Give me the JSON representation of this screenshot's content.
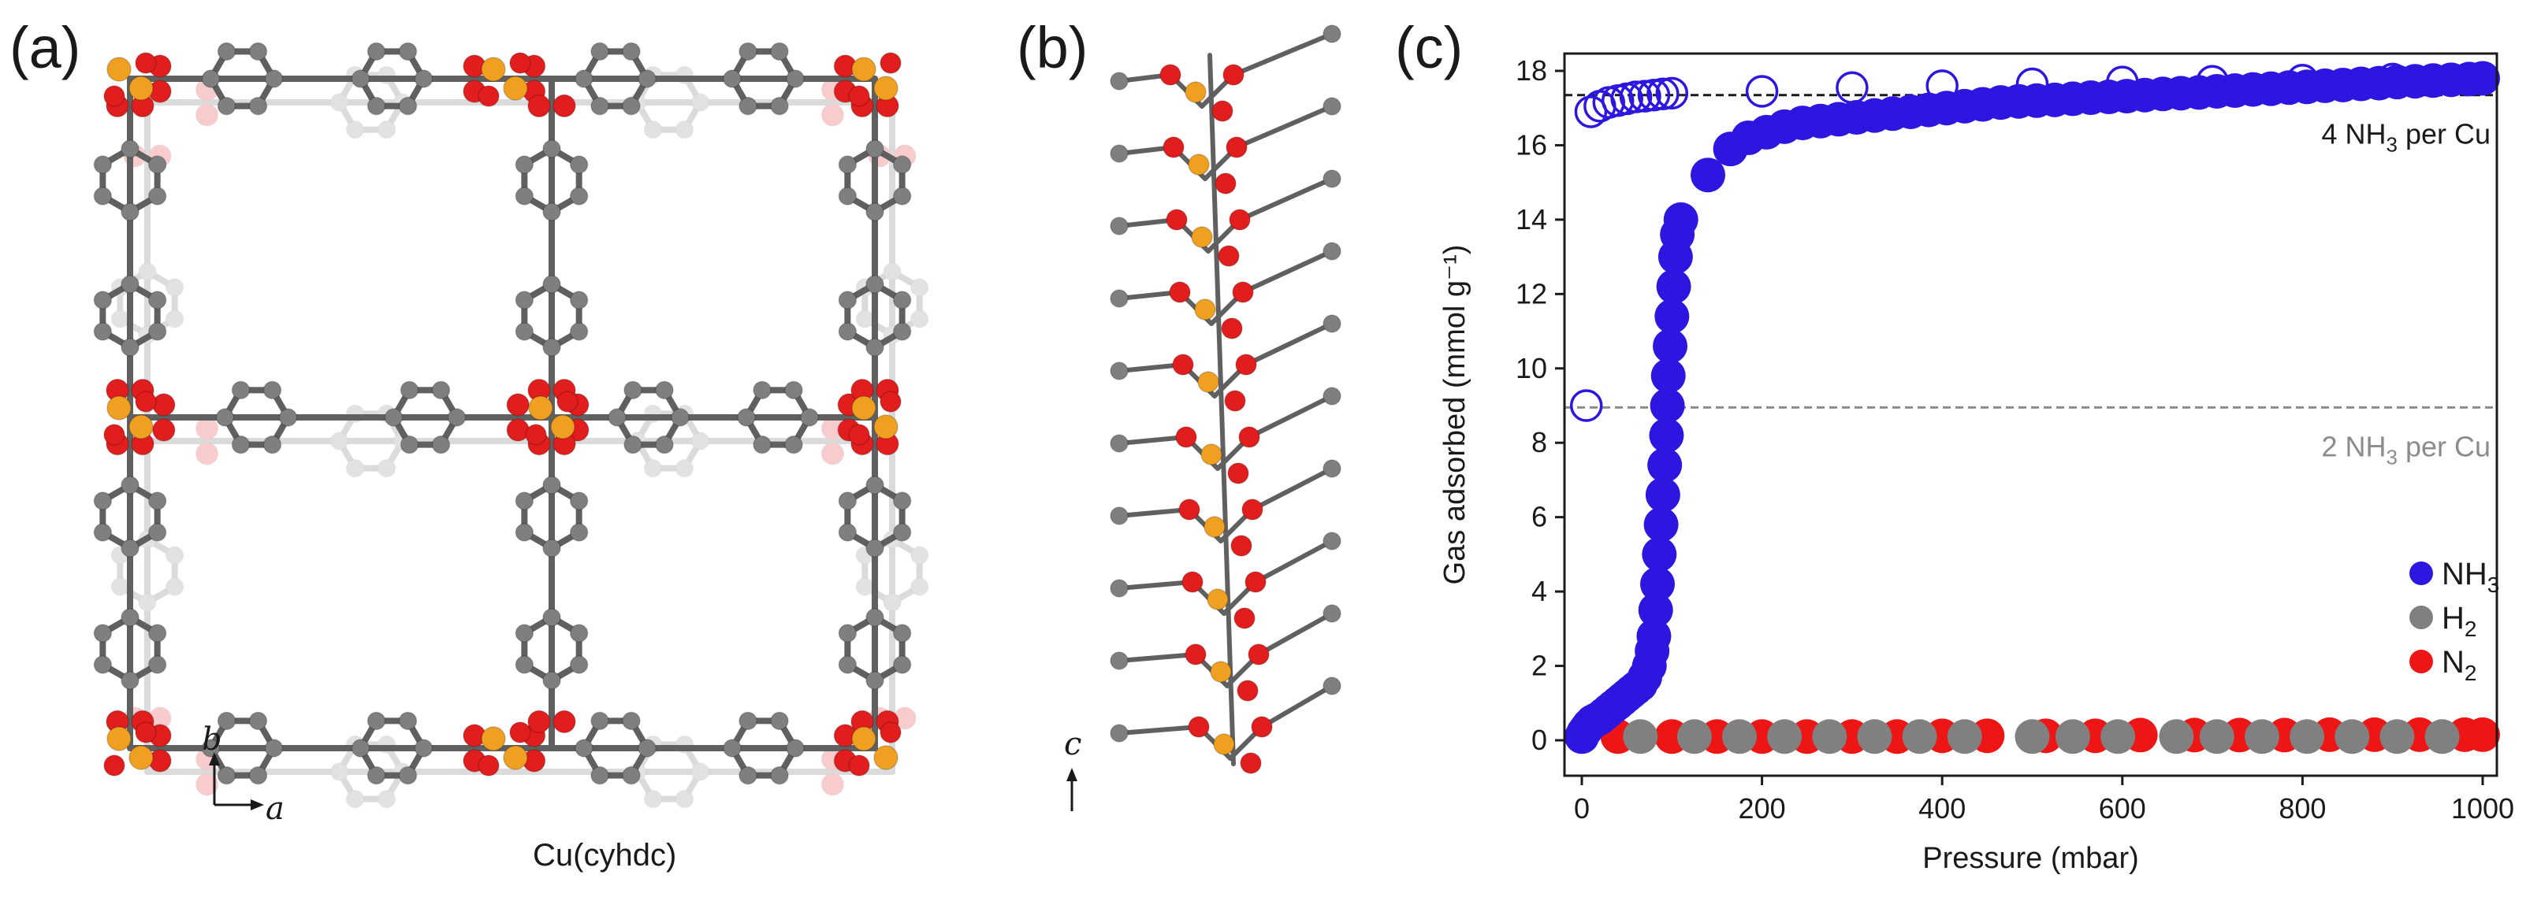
{
  "panels": {
    "a": {
      "letter": "(a)",
      "caption": "Cu(cyhdc)",
      "axis_b": "b",
      "axis_a": "a"
    },
    "b": {
      "letter": "(b)",
      "axis_c": "c"
    },
    "c": {
      "letter": "(c)"
    }
  },
  "colors": {
    "cu": "#f0a020",
    "oxygen": "#e21d1d",
    "carbon": "#7f7f7f",
    "bond": "#606060",
    "nh3": "#2d17e0",
    "h2": "#808080",
    "n2": "#ee1515"
  },
  "chart_data": {
    "type": "scatter",
    "xlabel": "Pressure (mbar)",
    "ylabel": "Gas adsorbed (mmol g⁻¹)",
    "xlim": [
      0,
      1000
    ],
    "ylim": [
      0,
      18
    ],
    "x_ticks": [
      0,
      200,
      400,
      600,
      800,
      1000
    ],
    "y_ticks": [
      0,
      2,
      4,
      6,
      8,
      10,
      12,
      14,
      16,
      18
    ],
    "reference_lines": [
      {
        "y": 17.35,
        "label_main": "4 NH",
        "label_sub": "3",
        "label_rest": " per Cu",
        "color": "#1a1a1a"
      },
      {
        "y": 8.95,
        "label_main": "2 NH",
        "label_sub": "3",
        "label_rest": " per Cu",
        "color": "#8c8c8c"
      }
    ],
    "legend": {
      "position": "bottom-right",
      "entries": [
        {
          "main": "NH",
          "sub": "3",
          "color": "#2d17e0"
        },
        {
          "main": "H",
          "sub": "2",
          "color": "#808080"
        },
        {
          "main": "N",
          "sub": "2",
          "color": "#ee1515"
        }
      ]
    },
    "series": [
      {
        "key": "NH3_adsorption",
        "marker": "filled",
        "color": "#2d17e0",
        "points": [
          [
            0,
            0.1
          ],
          [
            2,
            0.2
          ],
          [
            5,
            0.3
          ],
          [
            8,
            0.4
          ],
          [
            12,
            0.5
          ],
          [
            16,
            0.55
          ],
          [
            20,
            0.6
          ],
          [
            25,
            0.7
          ],
          [
            30,
            0.8
          ],
          [
            35,
            0.9
          ],
          [
            40,
            1.0
          ],
          [
            45,
            1.1
          ],
          [
            50,
            1.2
          ],
          [
            55,
            1.3
          ],
          [
            60,
            1.4
          ],
          [
            65,
            1.5
          ],
          [
            70,
            1.7
          ],
          [
            75,
            2.0
          ],
          [
            78,
            2.4
          ],
          [
            80,
            2.8
          ],
          [
            82,
            3.5
          ],
          [
            84,
            4.2
          ],
          [
            86,
            5.0
          ],
          [
            88,
            5.8
          ],
          [
            90,
            6.6
          ],
          [
            92,
            7.4
          ],
          [
            94,
            8.2
          ],
          [
            95,
            9.0
          ],
          [
            96,
            9.8
          ],
          [
            98,
            10.6
          ],
          [
            100,
            11.4
          ],
          [
            102,
            12.2
          ],
          [
            104,
            13.0
          ],
          [
            106,
            13.6
          ],
          [
            110,
            14.0
          ],
          [
            140,
            15.2
          ],
          [
            165,
            15.9
          ],
          [
            185,
            16.2
          ],
          [
            205,
            16.35
          ],
          [
            225,
            16.5
          ],
          [
            245,
            16.6
          ],
          [
            265,
            16.65
          ],
          [
            285,
            16.7
          ],
          [
            305,
            16.75
          ],
          [
            325,
            16.8
          ],
          [
            345,
            16.85
          ],
          [
            365,
            16.9
          ],
          [
            385,
            16.95
          ],
          [
            405,
            17.0
          ],
          [
            425,
            17.05
          ],
          [
            445,
            17.1
          ],
          [
            465,
            17.15
          ],
          [
            485,
            17.18
          ],
          [
            505,
            17.2
          ],
          [
            525,
            17.22
          ],
          [
            545,
            17.25
          ],
          [
            565,
            17.28
          ],
          [
            585,
            17.3
          ],
          [
            605,
            17.32
          ],
          [
            625,
            17.35
          ],
          [
            645,
            17.38
          ],
          [
            665,
            17.4
          ],
          [
            685,
            17.42
          ],
          [
            705,
            17.45
          ],
          [
            725,
            17.47
          ],
          [
            745,
            17.5
          ],
          [
            765,
            17.52
          ],
          [
            785,
            17.55
          ],
          [
            805,
            17.57
          ],
          [
            825,
            17.6
          ],
          [
            845,
            17.62
          ],
          [
            865,
            17.65
          ],
          [
            885,
            17.67
          ],
          [
            905,
            17.7
          ],
          [
            925,
            17.72
          ],
          [
            945,
            17.74
          ],
          [
            965,
            17.76
          ],
          [
            985,
            17.78
          ],
          [
            1000,
            17.8
          ]
        ]
      },
      {
        "key": "NH3_desorption",
        "marker": "open",
        "color": "#2d17e0",
        "points": [
          [
            5,
            9.0
          ],
          [
            10,
            16.9
          ],
          [
            20,
            17.05
          ],
          [
            30,
            17.15
          ],
          [
            40,
            17.2
          ],
          [
            50,
            17.25
          ],
          [
            60,
            17.3
          ],
          [
            70,
            17.32
          ],
          [
            80,
            17.35
          ],
          [
            90,
            17.38
          ],
          [
            100,
            17.4
          ],
          [
            200,
            17.45
          ],
          [
            300,
            17.55
          ],
          [
            400,
            17.6
          ],
          [
            500,
            17.65
          ],
          [
            600,
            17.7
          ],
          [
            700,
            17.72
          ],
          [
            800,
            17.75
          ],
          [
            900,
            17.78
          ],
          [
            1000,
            17.8
          ]
        ]
      },
      {
        "key": "N2",
        "marker": "filled",
        "color": "#ee1515",
        "points": [
          [
            40,
            0.1
          ],
          [
            100,
            0.1
          ],
          [
            150,
            0.1
          ],
          [
            200,
            0.1
          ],
          [
            250,
            0.1
          ],
          [
            300,
            0.1
          ],
          [
            350,
            0.1
          ],
          [
            400,
            0.12
          ],
          [
            450,
            0.12
          ],
          [
            515,
            0.12
          ],
          [
            570,
            0.12
          ],
          [
            620,
            0.14
          ],
          [
            680,
            0.14
          ],
          [
            730,
            0.14
          ],
          [
            780,
            0.14
          ],
          [
            830,
            0.15
          ],
          [
            880,
            0.15
          ],
          [
            930,
            0.15
          ],
          [
            980,
            0.15
          ],
          [
            1000,
            0.15
          ]
        ]
      },
      {
        "key": "H2",
        "marker": "filled",
        "color": "#808080",
        "points": [
          [
            65,
            0.1
          ],
          [
            125,
            0.1
          ],
          [
            175,
            0.1
          ],
          [
            225,
            0.1
          ],
          [
            275,
            0.1
          ],
          [
            325,
            0.1
          ],
          [
            375,
            0.1
          ],
          [
            425,
            0.1
          ],
          [
            500,
            0.1
          ],
          [
            545,
            0.1
          ],
          [
            595,
            0.1
          ],
          [
            660,
            0.1
          ],
          [
            705,
            0.1
          ],
          [
            755,
            0.1
          ],
          [
            805,
            0.1
          ],
          [
            855,
            0.1
          ],
          [
            905,
            0.1
          ],
          [
            955,
            0.1
          ]
        ]
      }
    ]
  }
}
